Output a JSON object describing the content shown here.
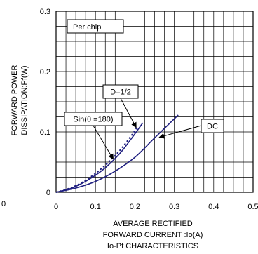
{
  "chart_data": {
    "type": "line",
    "title": "Io-Pf CHARACTERISTICS",
    "xlabel_lines": [
      "AVERAGE RECTIFIED",
      "FORWARD CURRENT :Io(A)"
    ],
    "ylabel_lines": [
      "FORWARD POWER",
      "DISSIPATION:Pf(W)"
    ],
    "xlim": [
      0,
      0.5
    ],
    "ylim": [
      0,
      0.3
    ],
    "x_ticks": [
      0,
      0.1,
      0.2,
      0.3,
      0.4,
      0.5
    ],
    "x_tick_labels": [
      "0",
      "0.1",
      "0.2",
      "0.3",
      "0.4",
      "0.5"
    ],
    "y_ticks": [
      0,
      0.1,
      0.2,
      0.3
    ],
    "y_tick_labels": [
      "0",
      "0.1",
      "0.2",
      "0.3"
    ],
    "stray_label": "0",
    "grid": true,
    "box_label": "Per chip",
    "series": [
      {
        "name": "D=1/2",
        "style": "dotted",
        "color": "#1f1f80",
        "x": [
          0,
          0.04,
          0.08,
          0.12,
          0.16,
          0.19,
          0.205
        ],
        "y": [
          0,
          0.008,
          0.022,
          0.042,
          0.068,
          0.093,
          0.107
        ]
      },
      {
        "name": "Sin(θ =180)",
        "style": "solid",
        "color": "#1f1f80",
        "x": [
          0,
          0.04,
          0.08,
          0.12,
          0.16,
          0.19,
          0.22
        ],
        "y": [
          0,
          0.007,
          0.02,
          0.038,
          0.063,
          0.088,
          0.115
        ]
      },
      {
        "name": "DC",
        "style": "solid",
        "color": "#1f1f80",
        "x": [
          0,
          0.05,
          0.1,
          0.15,
          0.2,
          0.25,
          0.31
        ],
        "y": [
          0,
          0.007,
          0.018,
          0.035,
          0.058,
          0.09,
          0.128
        ]
      }
    ],
    "annotations": [
      {
        "text": "D=1/2",
        "target_series": 0
      },
      {
        "text": "Sin(θ =180)",
        "target_series": 1
      },
      {
        "text": "DC",
        "target_series": 2
      }
    ]
  }
}
